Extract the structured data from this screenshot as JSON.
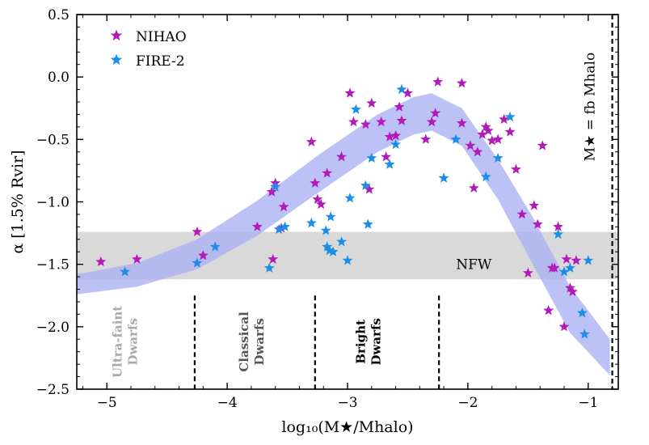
{
  "chart_data": {
    "type": "scatter",
    "xlabel": "log₁₀(M★/Mhalo)",
    "ylabel": "α [1.5% Rvir]",
    "xlim": [
      -5.25,
      -0.75
    ],
    "ylim": [
      -2.5,
      0.5
    ],
    "xticks": [
      "−5",
      "−4",
      "−3",
      "−2",
      "−1"
    ],
    "yticks": [
      "0.5",
      "0.0",
      "−0.5",
      "−1.0",
      "−1.5",
      "−2.0",
      "−2.5"
    ],
    "legend_position": "top-left",
    "nfw_label": "NFW",
    "nfw_band": [
      -1.62,
      -1.24
    ],
    "fb_line_label": "M★ = fb Mhalo",
    "fb_line_x": -0.8,
    "region_boundaries": [
      -4.27,
      -3.27,
      -2.24
    ],
    "regions": [
      {
        "label_line1": "Ultra-faint",
        "label_line2": "Dwarfs",
        "x": -4.85,
        "color": "#a9a9a9"
      },
      {
        "label_line1": "Classical",
        "label_line2": "Dwarfs",
        "x": -3.8,
        "color": "#555555"
      },
      {
        "label_line1": "Bright",
        "label_line2": "Dwarfs",
        "x": -2.83,
        "color": "#000000"
      }
    ],
    "fit_band": {
      "color": "#aab1f3",
      "x": [
        -5.25,
        -4.75,
        -4.25,
        -3.75,
        -3.25,
        -2.75,
        -2.45,
        -2.3,
        -2.05,
        -1.75,
        -1.45,
        -1.15,
        -0.82
      ],
      "upper": [
        -1.58,
        -1.49,
        -1.3,
        -0.99,
        -0.63,
        -0.3,
        -0.16,
        -0.13,
        -0.25,
        -0.66,
        -1.14,
        -1.68,
        -2.1
      ],
      "lower": [
        -1.74,
        -1.68,
        -1.54,
        -1.27,
        -0.93,
        -0.6,
        -0.46,
        -0.43,
        -0.55,
        -0.98,
        -1.52,
        -2.05,
        -2.39
      ]
    },
    "series": [
      {
        "name": "NIHAO",
        "color": "#b31bb8",
        "points": [
          [
            -5.05,
            -1.48
          ],
          [
            -4.75,
            -1.46
          ],
          [
            -4.25,
            -1.24
          ],
          [
            -4.2,
            -1.43
          ],
          [
            -3.75,
            -1.2
          ],
          [
            -3.63,
            -0.92
          ],
          [
            -3.6,
            -0.85
          ],
          [
            -3.62,
            -1.46
          ],
          [
            -3.55,
            -1.21
          ],
          [
            -3.53,
            -1.04
          ],
          [
            -3.3,
            -0.52
          ],
          [
            -3.27,
            -0.85
          ],
          [
            -3.25,
            -0.98
          ],
          [
            -3.22,
            -1.02
          ],
          [
            -3.17,
            -0.77
          ],
          [
            -3.05,
            -0.64
          ],
          [
            -2.98,
            -0.13
          ],
          [
            -2.95,
            -0.36
          ],
          [
            -2.85,
            -0.38
          ],
          [
            -2.82,
            -0.9
          ],
          [
            -2.8,
            -0.21
          ],
          [
            -2.72,
            -0.36
          ],
          [
            -2.68,
            -0.64
          ],
          [
            -2.65,
            -0.48
          ],
          [
            -2.6,
            -0.47
          ],
          [
            -2.57,
            -0.24
          ],
          [
            -2.55,
            -0.35
          ],
          [
            -2.5,
            -0.13
          ],
          [
            -2.35,
            -0.5
          ],
          [
            -2.3,
            -0.36
          ],
          [
            -2.27,
            -0.29
          ],
          [
            -2.25,
            -0.04
          ],
          [
            -2.05,
            -0.05
          ],
          [
            -2.05,
            -0.37
          ],
          [
            -1.98,
            -0.55
          ],
          [
            -1.95,
            -0.89
          ],
          [
            -1.92,
            -0.6
          ],
          [
            -1.88,
            -0.46
          ],
          [
            -1.85,
            -0.4
          ],
          [
            -1.83,
            -0.43
          ],
          [
            -1.8,
            -0.51
          ],
          [
            -1.75,
            -0.5
          ],
          [
            -1.7,
            -0.34
          ],
          [
            -1.65,
            -0.44
          ],
          [
            -1.6,
            -0.74
          ],
          [
            -1.55,
            -1.1
          ],
          [
            -1.5,
            -1.57
          ],
          [
            -1.45,
            -1.03
          ],
          [
            -1.42,
            -1.18
          ],
          [
            -1.38,
            -0.55
          ],
          [
            -1.33,
            -1.87
          ],
          [
            -1.3,
            -1.53
          ],
          [
            -1.28,
            -1.53
          ],
          [
            -1.25,
            -1.2
          ],
          [
            -1.2,
            -2.0
          ],
          [
            -1.18,
            -1.46
          ],
          [
            -1.15,
            -1.69
          ],
          [
            -1.13,
            -1.72
          ],
          [
            -1.1,
            -1.47
          ]
        ]
      },
      {
        "name": "FIRE-2",
        "color": "#1c8ee6",
        "points": [
          [
            -4.85,
            -1.56
          ],
          [
            -4.25,
            -1.49
          ],
          [
            -4.1,
            -1.36
          ],
          [
            -3.65,
            -1.53
          ],
          [
            -3.6,
            -0.88
          ],
          [
            -3.57,
            -1.22
          ],
          [
            -3.52,
            -1.2
          ],
          [
            -3.3,
            -1.17
          ],
          [
            -3.18,
            -1.23
          ],
          [
            -3.17,
            -1.36
          ],
          [
            -3.15,
            -1.39
          ],
          [
            -3.14,
            -1.12
          ],
          [
            -3.12,
            -1.4
          ],
          [
            -3.05,
            -1.32
          ],
          [
            -3.0,
            -1.47
          ],
          [
            -2.98,
            -0.97
          ],
          [
            -2.93,
            -0.26
          ],
          [
            -2.85,
            -0.87
          ],
          [
            -2.83,
            -1.18
          ],
          [
            -2.8,
            -0.65
          ],
          [
            -2.65,
            -0.7
          ],
          [
            -2.6,
            -0.54
          ],
          [
            -2.55,
            -0.1
          ],
          [
            -2.2,
            -0.81
          ],
          [
            -2.1,
            -0.5
          ],
          [
            -1.85,
            -0.8
          ],
          [
            -1.75,
            -0.65
          ],
          [
            -1.65,
            -0.32
          ],
          [
            -1.25,
            -1.26
          ],
          [
            -1.2,
            -1.56
          ],
          [
            -1.15,
            -1.53
          ],
          [
            -1.05,
            -1.89
          ],
          [
            -1.03,
            -2.06
          ],
          [
            -1.0,
            -1.47
          ]
        ]
      }
    ]
  }
}
